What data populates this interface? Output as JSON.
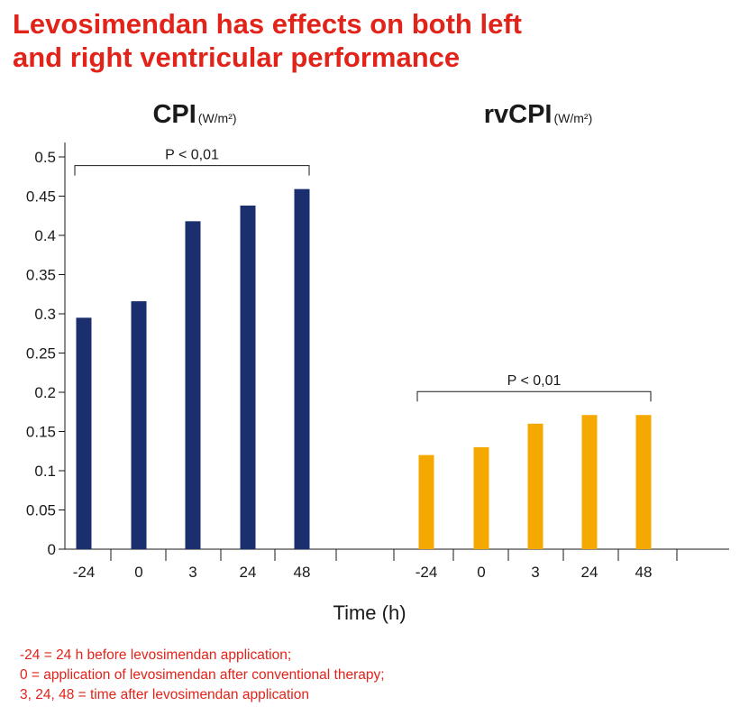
{
  "title_lines": [
    "Levosimendan has effects on both left",
    "and right ventricular performance"
  ],
  "chart_data": {
    "type": "bar",
    "ylim": [
      0,
      0.5
    ],
    "yticks": [
      "0.5",
      "0.45",
      "0.4",
      "0.35",
      "0.3",
      "0.25",
      "0.2",
      "0.15",
      "0.1",
      "0.05",
      "0"
    ],
    "xlabel": "Time (h)",
    "grid": false,
    "panels": [
      {
        "title": "CPI",
        "unit": "(W/m²)",
        "categories": [
          "-24",
          "0",
          "3",
          "24",
          "48"
        ],
        "values": [
          0.295,
          0.316,
          0.418,
          0.438,
          0.459
        ],
        "color": "#1b2f6e",
        "significance": "P < 0,01"
      },
      {
        "title": "rvCPI",
        "unit": "(W/m²)",
        "categories": [
          "-24",
          "0",
          "3",
          "24",
          "48"
        ],
        "values": [
          0.12,
          0.13,
          0.16,
          0.171,
          0.171
        ],
        "color": "#f5a800",
        "significance": "P < 0,01"
      }
    ]
  },
  "footnotes": [
    "-24 = 24 h before levosimendan application;",
    "0 = application of levosimendan after conventional therapy;",
    "3, 24, 48 = time after levosimendan application"
  ]
}
